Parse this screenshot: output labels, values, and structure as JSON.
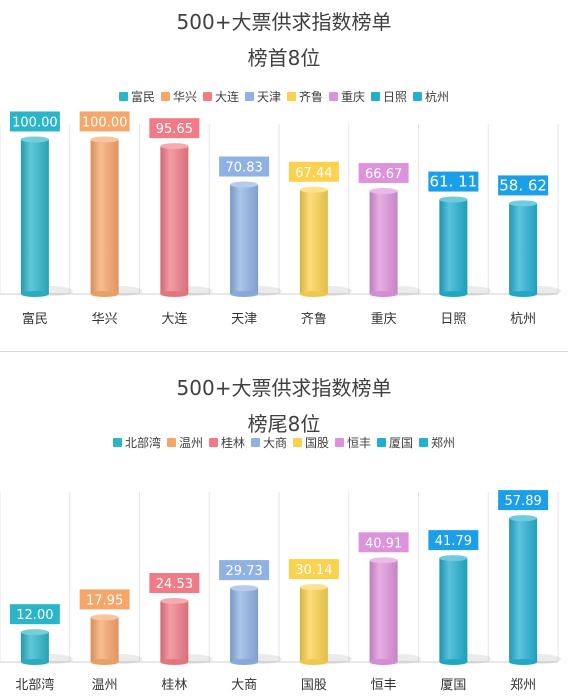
{
  "chart_data": [
    {
      "type": "bar",
      "title": "500+大票供求指数榜单",
      "subtitle": "榜首8位",
      "categories": [
        "富民",
        "华兴",
        "大连",
        "天津",
        "齐鲁",
        "重庆",
        "日照",
        "杭州"
      ],
      "values": [
        100.0,
        100.0,
        95.65,
        70.83,
        67.44,
        66.67,
        61.11,
        58.62
      ],
      "value_labels": [
        "100.00",
        "100.00",
        "95.65",
        "70.83",
        "67.44",
        "66.67",
        "61. 11",
        "58. 62"
      ],
      "colors": [
        "#2bb5c8",
        "#f7a669",
        "#f07b86",
        "#8fb1e3",
        "#fbd24e",
        "#dd93db",
        "#22aecd",
        "#25b0d3"
      ],
      "label_colors": [
        "#2bb5c8",
        "#f7a669",
        "#f07b86",
        "#8fb1e3",
        "#fbd24e",
        "#dd93db",
        "#1b9fe8",
        "#1b9fe8"
      ],
      "legend_position": "top",
      "grid": "vertical",
      "ylim": [
        0,
        110
      ]
    },
    {
      "type": "bar",
      "title": "500+大票供求指数榜单",
      "subtitle": "榜尾8位",
      "categories": [
        "北部湾",
        "温州",
        "桂林",
        "大商",
        "国股",
        "恒丰",
        "厦国",
        "郑州"
      ],
      "values": [
        12.0,
        17.95,
        24.53,
        29.73,
        30.14,
        40.91,
        41.79,
        57.89
      ],
      "value_labels": [
        "12.00",
        "17.95",
        "24.53",
        "29.73",
        "30.14",
        "40.91",
        "41.79",
        "57.89"
      ],
      "colors": [
        "#2bb5c8",
        "#f7a669",
        "#f07b86",
        "#8fb1e3",
        "#fbd24e",
        "#dd93db",
        "#22aecd",
        "#25b0d3"
      ],
      "label_colors": [
        "#2bb5c8",
        "#f7a669",
        "#f07b86",
        "#8fb1e3",
        "#fbd24e",
        "#dd93db",
        "#1b9fe8",
        "#1b9fe8"
      ],
      "legend_position": "top",
      "grid": "vertical",
      "ylim": [
        0,
        70
      ]
    }
  ]
}
